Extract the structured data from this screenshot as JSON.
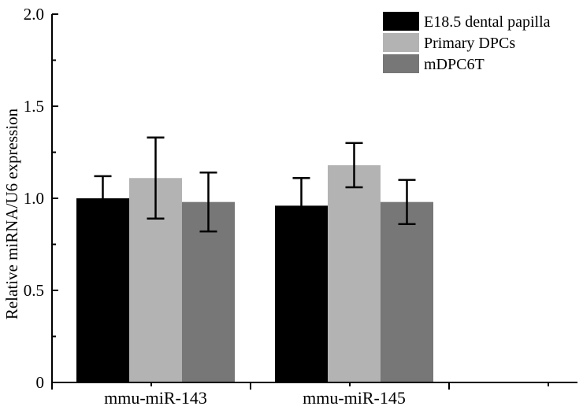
{
  "chart_data": {
    "type": "bar",
    "title": "",
    "xlabel": "",
    "ylabel": "Relative miRNA/U6 expression",
    "ylim": [
      0,
      2.0
    ],
    "yticks": [
      "0",
      "0.5",
      "1.0",
      "1.5",
      "2.0"
    ],
    "categories": [
      "mmu-miR-143",
      "mmu-miR-145"
    ],
    "series": [
      {
        "name": "E18.5 dental papilla",
        "color": "#000000",
        "values": [
          1.0,
          0.96
        ],
        "errors": [
          0.12,
          0.15
        ]
      },
      {
        "name": "Primary DPCs",
        "color": "#b3b3b3",
        "values": [
          1.11,
          1.18
        ],
        "errors": [
          0.22,
          0.12
        ]
      },
      {
        "name": "mDPC6T",
        "color": "#777777",
        "values": [
          0.98,
          0.98
        ],
        "errors": [
          0.16,
          0.12
        ]
      }
    ],
    "legend_position": "top-right",
    "grid": false
  }
}
